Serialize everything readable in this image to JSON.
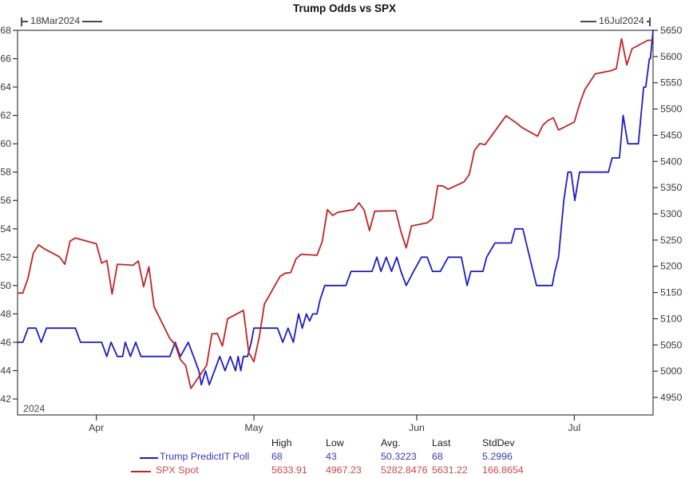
{
  "title": "Trump Odds vs SPX",
  "date_range": {
    "start_label": "18Mar2024",
    "end_label": "16Jul2024"
  },
  "year_label": "2024",
  "chart_data": {
    "type": "line",
    "title": "Trump Odds vs SPX",
    "x_axis": {
      "start": "16Mar2024",
      "end": "16Jul2024",
      "total_days": 121,
      "tick_labels": [
        "Apr",
        "May",
        "Jun",
        "Jul"
      ],
      "tick_days": [
        15,
        45,
        76,
        106
      ]
    },
    "left_axis": {
      "label": "Trump PredictIT Poll (%)",
      "min": 42,
      "max": 68,
      "ticks": [
        68,
        66,
        64,
        62,
        60,
        58,
        56,
        54,
        52,
        50,
        48,
        46,
        44,
        42
      ]
    },
    "right_axis": {
      "label": "SPX",
      "min": 4950,
      "max": 5650,
      "ticks": [
        5650,
        5600,
        5550,
        5500,
        5450,
        5400,
        5350,
        5300,
        5250,
        5200,
        5150,
        5100,
        5050,
        5000,
        4950
      ]
    },
    "grid": false,
    "legend_position": "bottom",
    "series": [
      {
        "name": "Trump PredictIT Poll",
        "axis": "left",
        "color": "#1e1ec0",
        "points": [
          [
            0,
            46
          ],
          [
            1,
            46
          ],
          [
            2,
            47
          ],
          [
            3.5,
            47
          ],
          [
            4.5,
            46
          ],
          [
            5.5,
            47
          ],
          [
            11,
            47
          ],
          [
            12,
            46
          ],
          [
            16,
            46
          ],
          [
            17,
            45
          ],
          [
            17.8,
            46
          ],
          [
            19,
            45
          ],
          [
            20,
            45
          ],
          [
            20.5,
            46
          ],
          [
            21.5,
            45
          ],
          [
            22.5,
            46
          ],
          [
            23.5,
            45
          ],
          [
            29,
            45
          ],
          [
            30,
            46
          ],
          [
            31,
            45
          ],
          [
            32.5,
            46
          ],
          [
            33.5,
            45
          ],
          [
            34.5,
            44
          ],
          [
            35,
            43
          ],
          [
            35.8,
            44
          ],
          [
            36.5,
            43
          ],
          [
            37.5,
            44
          ],
          [
            38.5,
            45
          ],
          [
            39.5,
            44
          ],
          [
            40.5,
            45
          ],
          [
            41.5,
            44
          ],
          [
            42,
            45
          ],
          [
            42.5,
            44
          ],
          [
            43,
            45
          ],
          [
            43.8,
            45
          ],
          [
            44.5,
            46
          ],
          [
            45,
            47
          ],
          [
            49.5,
            47
          ],
          [
            50.5,
            46
          ],
          [
            51.5,
            47
          ],
          [
            52.5,
            46
          ],
          [
            53,
            47
          ],
          [
            53.5,
            48
          ],
          [
            54.2,
            47
          ],
          [
            55,
            48
          ],
          [
            55.6,
            47.5
          ],
          [
            56.2,
            48
          ],
          [
            57,
            48
          ],
          [
            57.6,
            49
          ],
          [
            58.5,
            50
          ],
          [
            62.5,
            50
          ],
          [
            63.5,
            51
          ],
          [
            67.5,
            51
          ],
          [
            68.4,
            52
          ],
          [
            69.2,
            51
          ],
          [
            70.2,
            52
          ],
          [
            71.2,
            51
          ],
          [
            72.2,
            52
          ],
          [
            73,
            51
          ],
          [
            74,
            50
          ],
          [
            75.4,
            51
          ],
          [
            76.9,
            52
          ],
          [
            78,
            52
          ],
          [
            79,
            51
          ],
          [
            80.5,
            51
          ],
          [
            82,
            52
          ],
          [
            84.5,
            52
          ],
          [
            85.6,
            50
          ],
          [
            86.3,
            51
          ],
          [
            88.6,
            51
          ],
          [
            89.3,
            52
          ],
          [
            90.9,
            53
          ],
          [
            94,
            53
          ],
          [
            94.7,
            54
          ],
          [
            96.2,
            54
          ],
          [
            97.5,
            52
          ],
          [
            98.8,
            50
          ],
          [
            101.8,
            50
          ],
          [
            102.3,
            51
          ],
          [
            103,
            52
          ],
          [
            104,
            56
          ],
          [
            104.8,
            58
          ],
          [
            105.4,
            58
          ],
          [
            106.1,
            56
          ],
          [
            107,
            58
          ],
          [
            112.5,
            58
          ],
          [
            113.2,
            59
          ],
          [
            114.6,
            59
          ],
          [
            115.3,
            62
          ],
          [
            116.2,
            60
          ],
          [
            118.2,
            60
          ],
          [
            119.2,
            64
          ],
          [
            119.6,
            64
          ],
          [
            120.3,
            66
          ],
          [
            120.5,
            66
          ],
          [
            121,
            68
          ]
        ]
      },
      {
        "name": "SPX Spot",
        "axis": "right",
        "color": "#c02525",
        "points": [
          [
            0,
            5149
          ],
          [
            1,
            5149
          ],
          [
            2,
            5178
          ],
          [
            3,
            5225
          ],
          [
            4,
            5241
          ],
          [
            5,
            5234
          ],
          [
            8,
            5218
          ],
          [
            9,
            5204
          ],
          [
            10,
            5248
          ],
          [
            11,
            5254
          ],
          [
            15,
            5243
          ],
          [
            16,
            5206
          ],
          [
            17,
            5211
          ],
          [
            18,
            5147
          ],
          [
            19,
            5204
          ],
          [
            22,
            5202
          ],
          [
            23,
            5210
          ],
          [
            24,
            5161
          ],
          [
            25,
            5199
          ],
          [
            26,
            5123
          ],
          [
            29,
            5062
          ],
          [
            30,
            5051
          ],
          [
            31,
            5022
          ],
          [
            32,
            5011
          ],
          [
            33,
            4967
          ],
          [
            36,
            5011
          ],
          [
            37,
            5071
          ],
          [
            38,
            5072
          ],
          [
            39,
            5048
          ],
          [
            40,
            5100
          ],
          [
            43,
            5116
          ],
          [
            44,
            5036
          ],
          [
            45,
            5018
          ],
          [
            46,
            5064
          ],
          [
            47,
            5128
          ],
          [
            50,
            5181
          ],
          [
            51,
            5187
          ],
          [
            52,
            5188
          ],
          [
            53,
            5214
          ],
          [
            54,
            5223
          ],
          [
            57,
            5221
          ],
          [
            58,
            5247
          ],
          [
            59,
            5308
          ],
          [
            60,
            5297
          ],
          [
            61,
            5303
          ],
          [
            64,
            5308
          ],
          [
            65,
            5321
          ],
          [
            66,
            5307
          ],
          [
            67,
            5268
          ],
          [
            68,
            5305
          ],
          [
            72,
            5306
          ],
          [
            73,
            5266
          ],
          [
            74,
            5235
          ],
          [
            75,
            5277
          ],
          [
            78,
            5283
          ],
          [
            79,
            5291
          ],
          [
            80,
            5354
          ],
          [
            81,
            5353
          ],
          [
            82,
            5347
          ],
          [
            85,
            5361
          ],
          [
            86,
            5375
          ],
          [
            87,
            5421
          ],
          [
            88,
            5434
          ],
          [
            89,
            5432
          ],
          [
            92,
            5473
          ],
          [
            93,
            5487
          ],
          [
            95,
            5473
          ],
          [
            96,
            5465
          ],
          [
            99,
            5448
          ],
          [
            100,
            5469
          ],
          [
            101,
            5478
          ],
          [
            102,
            5483
          ],
          [
            103,
            5460
          ],
          [
            106,
            5475
          ],
          [
            107,
            5509
          ],
          [
            108,
            5537
          ],
          [
            110,
            5567
          ],
          [
            113,
            5573
          ],
          [
            114,
            5577
          ],
          [
            115,
            5634
          ],
          [
            116,
            5584
          ],
          [
            117,
            5615
          ],
          [
            120,
            5631
          ],
          [
            121,
            5631
          ]
        ]
      }
    ]
  },
  "stats_table": {
    "headers": [
      "High",
      "Low",
      "Avg.",
      "Last",
      "StdDev"
    ],
    "rows": [
      {
        "label": "Trump PredictIT Poll",
        "color": "#3a3ab8",
        "values": [
          "68",
          "43",
          "50.3223",
          "68",
          "5.2996"
        ]
      },
      {
        "label": "SPX Spot",
        "color": "#cd4848",
        "values": [
          "5633.91",
          "4967.23",
          "5282.8476",
          "5631.22",
          "166.8654"
        ]
      }
    ]
  }
}
